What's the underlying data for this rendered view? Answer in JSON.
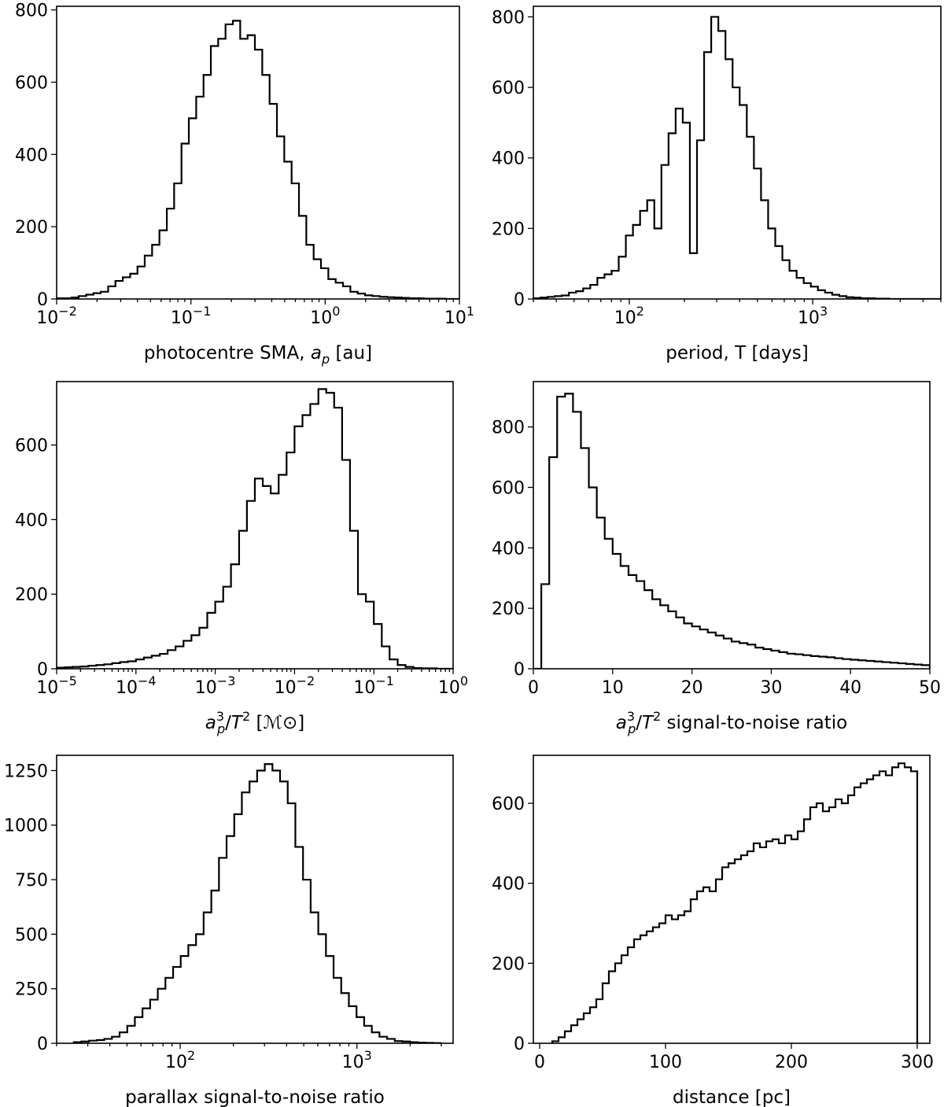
{
  "chart_data": [
    {
      "type": "histogram",
      "name": "photocentre-sma",
      "xscale": "log",
      "xlabel": "photocentre SMA, a_p [au]",
      "xlabel_parts": [
        "photocentre SMA, ",
        "a",
        "p",
        " [au]"
      ],
      "xlim": [
        0.01,
        10
      ],
      "ylim": [
        0,
        810
      ],
      "xticks": [
        {
          "v": 0.01,
          "label": "10",
          "exp": "−2"
        },
        {
          "v": 0.1,
          "label": "10",
          "exp": "−1"
        },
        {
          "v": 1,
          "label": "10",
          "exp": "0"
        },
        {
          "v": 10,
          "label": "10",
          "exp": "1"
        }
      ],
      "yticks": [
        0,
        200,
        400,
        600,
        800
      ],
      "x": [
        0.01,
        0.0114,
        0.0129,
        0.0146,
        0.0166,
        0.0188,
        0.0213,
        0.0242,
        0.0274,
        0.0311,
        0.0353,
        0.04,
        0.0453,
        0.0514,
        0.0583,
        0.0662,
        0.075,
        0.0851,
        0.0965,
        0.1095,
        0.1242,
        0.1408,
        0.1597,
        0.1811,
        0.2054,
        0.233,
        0.2643,
        0.2997,
        0.34,
        0.3856,
        0.4373,
        0.496,
        0.5626,
        0.6381,
        0.7237,
        0.8209,
        0.931,
        1.0559,
        1.1976,
        1.3583,
        1.5406,
        1.7474,
        1.9818,
        2.2478,
        2.5494,
        2.8915,
        3.2796,
        3.7197,
        4.2188,
        4.785,
        5.4271,
        6.1554,
        6.9814,
        7.9183,
        8.981,
        10
      ],
      "values": [
        2,
        2,
        4,
        8,
        12,
        16,
        20,
        35,
        50,
        60,
        70,
        90,
        120,
        150,
        190,
        250,
        320,
        430,
        500,
        560,
        620,
        700,
        720,
        760,
        770,
        720,
        730,
        690,
        620,
        540,
        450,
        380,
        320,
        230,
        150,
        110,
        85,
        55,
        45,
        35,
        20,
        15,
        10,
        8,
        6,
        5,
        4,
        3,
        2,
        2,
        1,
        1,
        1,
        0,
        0
      ]
    },
    {
      "type": "histogram",
      "name": "period",
      "xscale": "log",
      "xlabel": "period, T [days]",
      "xlim": [
        30,
        5000
      ],
      "ylim": [
        0,
        830
      ],
      "xticks": [
        {
          "v": 100,
          "label": "10",
          "exp": "2"
        },
        {
          "v": 1000,
          "label": "10",
          "exp": "3"
        }
      ],
      "yticks": [
        0,
        200,
        400,
        600,
        800
      ],
      "x": [
        30,
        32.8,
        35.87,
        39.22,
        42.88,
        46.89,
        51.27,
        56.06,
        61.3,
        67.02,
        73.29,
        80.13,
        87.62,
        95.81,
        104.76,
        114.55,
        125.25,
        136.95,
        149.75,
        163.74,
        179.04,
        195.77,
        214.06,
        234.06,
        255.93,
        279.85,
        305.99,
        334.58,
        365.85,
        400.03,
        437.41,
        478.28,
        522.97,
        571.83,
        625.26,
        683.69,
        747.57,
        817.42,
        893.8,
        977.32,
        1068.63,
        1168.48,
        1277.66,
        1397.04,
        1527.58,
        1670.31,
        1826.38,
        1997.04,
        2183.64,
        2387.67,
        2610.77,
        2854.72,
        3121.46,
        3413.12,
        3732.04,
        4080.75,
        4462.05,
        5000
      ],
      "values": [
        2,
        4,
        6,
        8,
        10,
        18,
        22,
        30,
        40,
        60,
        70,
        80,
        120,
        180,
        210,
        250,
        280,
        200,
        380,
        470,
        540,
        500,
        130,
        450,
        700,
        800,
        760,
        680,
        600,
        550,
        460,
        370,
        280,
        200,
        150,
        110,
        80,
        60,
        45,
        35,
        25,
        18,
        12,
        8,
        5,
        4,
        2,
        2,
        1,
        1,
        0,
        0,
        0,
        0,
        0,
        0,
        0
      ],
      "note": "values approximated from the plotted step histogram"
    },
    {
      "type": "histogram",
      "name": "a3-over-t2",
      "xscale": "log",
      "xlabel": "a_p^3/T^2 [M_sun]",
      "xlim": [
        1e-05,
        1
      ],
      "ylim": [
        0,
        770
      ],
      "xticks": [
        {
          "v": 1e-05,
          "label": "10",
          "exp": "−5"
        },
        {
          "v": 0.0001,
          "label": "10",
          "exp": "−4"
        },
        {
          "v": 0.001,
          "label": "10",
          "exp": "−3"
        },
        {
          "v": 0.01,
          "label": "10",
          "exp": "−2"
        },
        {
          "v": 0.1,
          "label": "10",
          "exp": "−1"
        },
        {
          "v": 1,
          "label": "10",
          "exp": "0"
        }
      ],
      "yticks": [
        0,
        200,
        400,
        600
      ],
      "x": [
        1e-05,
        1.26e-05,
        1.58e-05,
        2e-05,
        2.51e-05,
        3.16e-05,
        3.98e-05,
        5.01e-05,
        6.31e-05,
        7.94e-05,
        0.0001,
        0.000126,
        0.000158,
        0.0002,
        0.000251,
        0.000316,
        0.000398,
        0.000501,
        0.000631,
        0.000794,
        0.001,
        0.00126,
        0.00158,
        0.002,
        0.00251,
        0.00316,
        0.00398,
        0.00501,
        0.00631,
        0.00794,
        0.01,
        0.0126,
        0.0158,
        0.02,
        0.0251,
        0.0316,
        0.0398,
        0.0501,
        0.0631,
        0.0794,
        0.1,
        0.126,
        0.158,
        0.2,
        0.251,
        0.316,
        0.398,
        0.501,
        0.631,
        0.794,
        1
      ],
      "values": [
        3,
        4,
        5,
        6,
        8,
        10,
        12,
        15,
        18,
        20,
        25,
        30,
        35,
        40,
        50,
        60,
        75,
        90,
        110,
        150,
        180,
        220,
        280,
        370,
        450,
        510,
        490,
        470,
        520,
        580,
        650,
        680,
        710,
        750,
        740,
        700,
        560,
        370,
        200,
        180,
        120,
        60,
        25,
        10,
        5,
        2,
        1,
        1,
        0,
        0
      ],
      "note": "values approximated from the plotted step histogram"
    },
    {
      "type": "histogram",
      "name": "a3t2-snr",
      "xscale": "linear",
      "xlabel": "a_p^3/T^2 signal-to-noise ratio",
      "xlim": [
        0,
        50
      ],
      "ylim": [
        0,
        950
      ],
      "xticks": [
        {
          "v": 0,
          "label": "0"
        },
        {
          "v": 10,
          "label": "10"
        },
        {
          "v": 20,
          "label": "20"
        },
        {
          "v": 30,
          "label": "30"
        },
        {
          "v": 40,
          "label": "40"
        },
        {
          "v": 50,
          "label": "50"
        }
      ],
      "yticks": [
        0,
        200,
        400,
        600,
        800
      ],
      "x": [
        0,
        1,
        2,
        3,
        4,
        5,
        6,
        7,
        8,
        9,
        10,
        11,
        12,
        13,
        14,
        15,
        16,
        17,
        18,
        19,
        20,
        21,
        22,
        23,
        24,
        25,
        26,
        27,
        28,
        29,
        30,
        31,
        32,
        33,
        34,
        35,
        36,
        37,
        38,
        39,
        40,
        41,
        42,
        43,
        44,
        45,
        46,
        47,
        48,
        49,
        50
      ],
      "values": [
        0,
        280,
        700,
        900,
        910,
        850,
        730,
        600,
        500,
        430,
        380,
        340,
        310,
        290,
        260,
        230,
        210,
        190,
        170,
        150,
        140,
        130,
        120,
        110,
        100,
        90,
        85,
        80,
        70,
        65,
        60,
        55,
        50,
        48,
        45,
        42,
        40,
        38,
        35,
        32,
        30,
        28,
        26,
        24,
        22,
        20,
        18,
        16,
        14,
        12
      ]
    },
    {
      "type": "histogram",
      "name": "parallax-snr",
      "xscale": "log",
      "xlabel": "parallax signal-to-noise ratio",
      "xlim": [
        20,
        3500
      ],
      "ylim": [
        0,
        1320
      ],
      "xticks": [
        {
          "v": 100,
          "label": "10",
          "exp": "2"
        },
        {
          "v": 1000,
          "label": "10",
          "exp": "3"
        }
      ],
      "yticks": [
        0,
        250,
        500,
        750,
        1000,
        1250
      ],
      "x": [
        25,
        27.6,
        30.5,
        33.7,
        37.2,
        41.1,
        45.4,
        50.2,
        55.4,
        61.2,
        67.6,
        74.7,
        82.5,
        91.2,
        100.7,
        111.2,
        122.9,
        135.7,
        150,
        165.7,
        183,
        202.2,
        223.3,
        246.7,
        272.5,
        301.1,
        332.6,
        367.4,
        405.8,
        448.3,
        495.3,
        547.1,
        604.4,
        667.7,
        737.6,
        814.8,
        900.1,
        994.4,
        1098.5,
        1213.5,
        1340.6,
        1481,
        1636,
        1807.3,
        1996.6,
        2205.6,
        2436.6,
        2691.7,
        2973.5
      ],
      "values": [
        5,
        8,
        12,
        15,
        20,
        30,
        50,
        80,
        120,
        160,
        200,
        250,
        300,
        350,
        400,
        450,
        500,
        600,
        700,
        850,
        950,
        1050,
        1150,
        1200,
        1250,
        1280,
        1250,
        1200,
        1100,
        900,
        750,
        600,
        500,
        400,
        300,
        230,
        170,
        120,
        80,
        50,
        30,
        20,
        10,
        8,
        5,
        3,
        2,
        1
      ]
    },
    {
      "type": "histogram",
      "name": "distance",
      "xscale": "linear",
      "xlabel": "distance [pc]",
      "xlim": [
        -5,
        310
      ],
      "ylim": [
        0,
        720
      ],
      "xticks": [
        {
          "v": 0,
          "label": "0"
        },
        {
          "v": 100,
          "label": "100"
        },
        {
          "v": 200,
          "label": "200"
        },
        {
          "v": 300,
          "label": "300"
        }
      ],
      "yticks": [
        0,
        200,
        400,
        600
      ],
      "x": [
        10,
        15,
        20,
        25,
        30,
        35,
        40,
        45,
        50,
        55,
        60,
        65,
        70,
        75,
        80,
        85,
        90,
        95,
        100,
        105,
        110,
        115,
        120,
        125,
        130,
        135,
        140,
        145,
        150,
        155,
        160,
        165,
        170,
        175,
        180,
        185,
        190,
        195,
        200,
        205,
        210,
        215,
        220,
        225,
        230,
        235,
        240,
        245,
        250,
        255,
        260,
        265,
        270,
        275,
        280,
        285,
        290,
        295,
        300
      ],
      "values": [
        5,
        15,
        30,
        45,
        60,
        75,
        90,
        110,
        150,
        180,
        200,
        220,
        240,
        260,
        270,
        280,
        290,
        300,
        320,
        310,
        320,
        330,
        360,
        380,
        390,
        380,
        410,
        440,
        450,
        460,
        470,
        480,
        500,
        490,
        505,
        510,
        500,
        520,
        510,
        530,
        560,
        590,
        600,
        580,
        590,
        610,
        600,
        620,
        640,
        650,
        660,
        670,
        680,
        670,
        690,
        700,
        690,
        680,
        0
      ]
    }
  ]
}
